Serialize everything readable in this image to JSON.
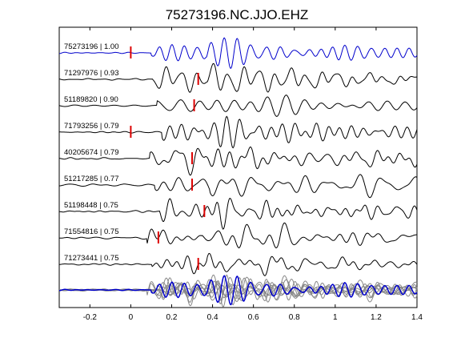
{
  "chart_data": {
    "type": "line",
    "title": "75273196.NC.JJO.EHZ",
    "xlabel": "",
    "ylabel": "",
    "xlim": [
      -0.35,
      1.4
    ],
    "grid": false,
    "x_ticks": [
      -0.2,
      0,
      0.2,
      0.4,
      0.6,
      0.8,
      1,
      1.2,
      1.4
    ],
    "x_tick_labels": [
      "-0.2",
      "0",
      "0.2",
      "0.4",
      "0.6",
      "0.8",
      "1",
      "1.2",
      "1.4"
    ],
    "colors": {
      "reference": "#0000cc",
      "trace": "#000000",
      "pick": "#dd0000",
      "stack": "#888888"
    },
    "traces": [
      {
        "id": "75273196",
        "cc": "1.00",
        "label": "75273196 | 1.00",
        "pick_time": 0.0,
        "reference": true
      },
      {
        "id": "71297976",
        "cc": "0.93",
        "label": "71297976 | 0.93",
        "pick_time": 0.33,
        "reference": false
      },
      {
        "id": "51189820",
        "cc": "0.90",
        "label": "51189820 | 0.90",
        "pick_time": 0.31,
        "reference": false
      },
      {
        "id": "71793256",
        "cc": "0.79",
        "label": "71793256 | 0.79",
        "pick_time": 0.0,
        "reference": false
      },
      {
        "id": "40205674",
        "cc": "0.79",
        "label": "40205674 | 0.79",
        "pick_time": 0.3,
        "reference": false
      },
      {
        "id": "51217285",
        "cc": "0.77",
        "label": "51217285 | 0.77",
        "pick_time": 0.3,
        "reference": false
      },
      {
        "id": "51198448",
        "cc": "0.75",
        "label": "51198448 | 0.75",
        "pick_time": 0.36,
        "reference": false
      },
      {
        "id": "71554816",
        "cc": "0.75",
        "label": "71554816 | 0.75",
        "pick_time": 0.135,
        "reference": false
      },
      {
        "id": "71273441",
        "cc": "0.75",
        "label": "71273441 | 0.75",
        "pick_time": 0.33,
        "reference": false
      }
    ]
  }
}
